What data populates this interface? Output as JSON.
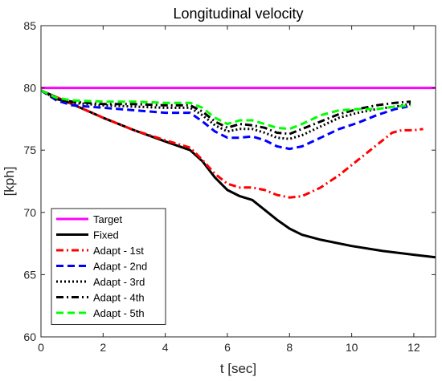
{
  "chart_data": {
    "type": "line",
    "title": "Longitudinal velocity",
    "xlabel": "t [sec]",
    "ylabel": "[kph]",
    "xlim": [
      0,
      12.7
    ],
    "ylim": [
      60,
      85
    ],
    "xticks": [
      0,
      2,
      4,
      6,
      8,
      10,
      12
    ],
    "yticks": [
      60,
      65,
      70,
      75,
      80,
      85
    ],
    "grid": false,
    "legend_position": "bottom-left",
    "series": [
      {
        "name": "Target",
        "color": "#ff00ff",
        "dash": "solid",
        "x": [
          0,
          12.7
        ],
        "y": [
          80,
          80
        ]
      },
      {
        "name": "Fixed",
        "color": "#000000",
        "dash": "solid",
        "x": [
          0,
          1,
          2,
          3,
          4,
          4.8,
          5.2,
          5.6,
          6.0,
          6.4,
          6.8,
          7.2,
          7.6,
          8.0,
          8.4,
          9.0,
          10.0,
          11.0,
          12.0,
          12.7
        ],
        "y": [
          79.8,
          78.7,
          77.6,
          76.6,
          75.7,
          75.0,
          74.1,
          72.8,
          71.8,
          71.3,
          71.0,
          70.2,
          69.4,
          68.7,
          68.2,
          67.8,
          67.3,
          66.9,
          66.6,
          66.4
        ]
      },
      {
        "name": "Adapt - 1st",
        "color": "#ff0000",
        "dash": "dashdot",
        "x": [
          0,
          1,
          2,
          3,
          4,
          4.8,
          5.2,
          5.6,
          6.0,
          6.4,
          6.8,
          7.2,
          7.6,
          8.0,
          8.4,
          9.0,
          9.6,
          10.2,
          10.8,
          11.3,
          11.6,
          12.0,
          12.3
        ],
        "y": [
          79.8,
          78.7,
          77.6,
          76.6,
          75.8,
          75.2,
          74.2,
          73.1,
          72.3,
          72.0,
          72.0,
          71.8,
          71.4,
          71.2,
          71.3,
          72.0,
          73.0,
          74.2,
          75.4,
          76.4,
          76.6,
          76.6,
          76.7
        ]
      },
      {
        "name": "Adapt - 2nd",
        "color": "#0000ff",
        "dash": "dashed",
        "x": [
          0,
          0.5,
          1,
          2,
          3,
          4,
          4.8,
          5.2,
          5.6,
          6.0,
          6.4,
          6.8,
          7.2,
          7.6,
          8.0,
          8.4,
          9.0,
          9.6,
          10.2,
          10.8,
          11.4,
          11.8
        ],
        "y": [
          79.8,
          79.0,
          78.6,
          78.4,
          78.2,
          78.0,
          78.0,
          77.3,
          76.5,
          76.0,
          76.0,
          76.1,
          75.8,
          75.3,
          75.1,
          75.3,
          76.0,
          76.7,
          77.2,
          77.8,
          78.3,
          78.5
        ]
      },
      {
        "name": "Adapt - 3rd",
        "color": "#000000",
        "dash": "dotted",
        "x": [
          0,
          0.5,
          1,
          2,
          3,
          4,
          4.8,
          5.2,
          5.6,
          6.0,
          6.4,
          6.8,
          7.2,
          7.6,
          8.0,
          8.4,
          9.0,
          9.6,
          10.2,
          10.8,
          11.4,
          11.9
        ],
        "y": [
          79.8,
          79.1,
          78.8,
          78.6,
          78.5,
          78.4,
          78.4,
          77.8,
          77.0,
          76.5,
          76.7,
          76.7,
          76.4,
          76.0,
          75.9,
          76.2,
          76.9,
          77.6,
          78.0,
          78.3,
          78.5,
          78.7
        ]
      },
      {
        "name": "Adapt - 4th",
        "color": "#000000",
        "dash": "dashdot",
        "x": [
          0,
          0.5,
          1,
          2,
          3,
          4,
          4.8,
          5.2,
          5.6,
          6.0,
          6.4,
          6.8,
          7.2,
          7.6,
          8.0,
          8.4,
          9.0,
          9.6,
          10.2,
          10.8,
          11.4,
          11.9
        ],
        "y": [
          79.8,
          79.1,
          78.9,
          78.7,
          78.7,
          78.6,
          78.6,
          78.1,
          77.3,
          76.8,
          77.1,
          77.0,
          76.8,
          76.4,
          76.3,
          76.7,
          77.3,
          77.9,
          78.3,
          78.6,
          78.8,
          78.9
        ]
      },
      {
        "name": "Adapt - 5th",
        "color": "#00ff00",
        "dash": "dashed",
        "x": [
          0,
          0.5,
          1,
          2,
          3,
          4,
          4.8,
          5.2,
          5.6,
          6.0,
          6.4,
          6.8,
          7.2,
          7.6,
          8.0,
          8.4,
          9.0,
          9.6,
          10.2,
          10.8,
          11.4,
          11.9
        ],
        "y": [
          79.8,
          79.2,
          79.0,
          78.9,
          78.9,
          78.8,
          78.8,
          78.4,
          77.6,
          77.1,
          77.4,
          77.4,
          77.1,
          76.8,
          76.7,
          77.1,
          77.8,
          78.2,
          78.3,
          78.3,
          78.5,
          78.6
        ]
      }
    ]
  }
}
